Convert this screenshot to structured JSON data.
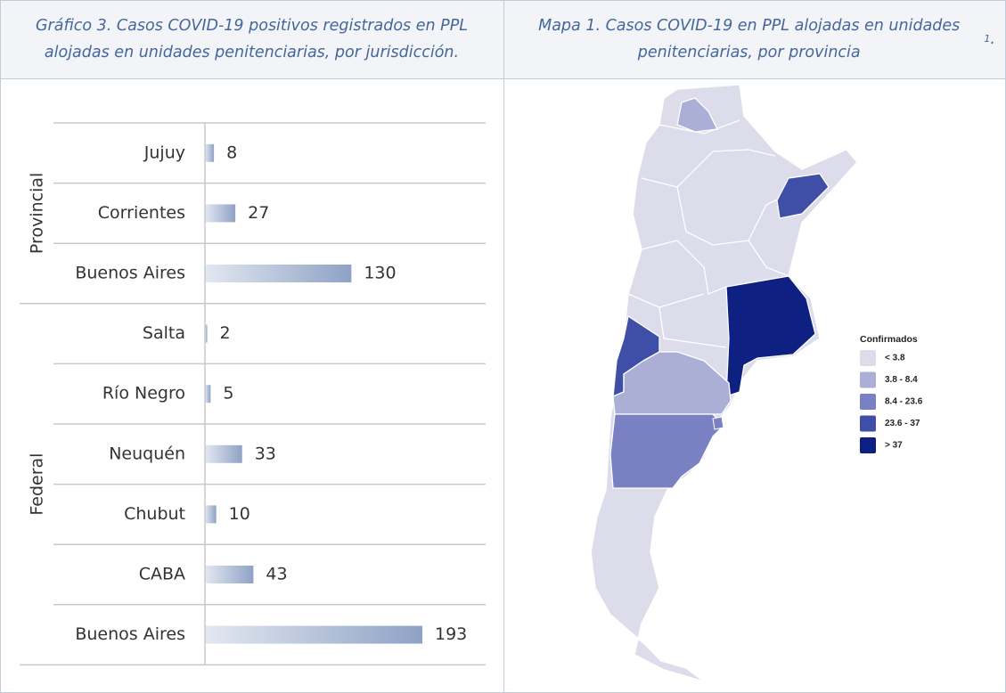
{
  "left_title": "Gráfico 3. Casos COVID-19 positivos registrados en PPL alojadas en unidades penitenciarias, por jurisdicción.",
  "right_title": [
    "Mapa 1. Casos COVID-19 en PPL alojadas en unidades penitenciarias, por provincia",
    "1",
    "."
  ],
  "chart_data": {
    "type": "bar",
    "orientation": "horizontal",
    "groups": [
      {
        "name": "Provincial",
        "categories": [
          "Jujuy",
          "Corrientes",
          "Buenos Aires"
        ],
        "values": [
          8,
          27,
          130
        ]
      },
      {
        "name": "Federal",
        "categories": [
          "Salta",
          "Río Negro",
          "Neuquén",
          "Chubut",
          "CABA",
          "Buenos Aires"
        ],
        "values": [
          2,
          5,
          33,
          10,
          43,
          193
        ]
      }
    ],
    "color": [
      "#e3e8f1",
      "#8ea2c5"
    ]
  },
  "map": {
    "legend_title": "Confirmados",
    "legend": [
      {
        "label": "< 3.8",
        "color": "#dcdcea"
      },
      {
        "label": "3.8 - 8.4",
        "color": "#abafd6"
      },
      {
        "label": "8.4 - 23.6",
        "color": "#7981c3"
      },
      {
        "label": "23.6 - 37",
        "color": "#3f4ea6"
      },
      {
        "label": "> 37",
        "color": "#0e2183"
      }
    ]
  }
}
